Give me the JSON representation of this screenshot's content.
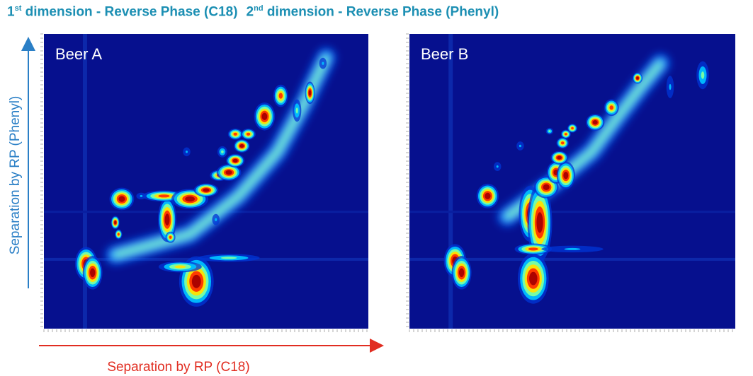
{
  "header": {
    "dim1_ordinal": "1",
    "dim1_suffix": "st",
    "dim1_text": "dimension - Reverse Phase (C18)",
    "dim2_ordinal": "2",
    "dim2_suffix": "nd",
    "dim2_text": "dimension - Reverse Phase (Phenyl)"
  },
  "axes": {
    "y_label": "Separation by RP (Phenyl)",
    "x_label": "Separation by RP (C18)",
    "y_arrow_color": "#2a7fc6",
    "x_arrow_color": "#e12d21"
  },
  "chart_data": [
    {
      "type": "heatmap",
      "title": "Beer A",
      "colormap": [
        "#00007a",
        "#0035d6",
        "#00bfff",
        "#7dffa0",
        "#ffe000",
        "#ff3000",
        "#a80000"
      ],
      "background": "#06108e",
      "x_range": [
        0,
        1
      ],
      "y_range": [
        0,
        1
      ],
      "diagonal_band": [
        [
          0.22,
          0.25
        ],
        [
          0.45,
          0.32
        ],
        [
          0.6,
          0.45
        ],
        [
          0.72,
          0.6
        ],
        [
          0.8,
          0.76
        ],
        [
          0.87,
          0.92
        ]
      ],
      "peaks": [
        {
          "x": 0.13,
          "y": 0.22,
          "sx": 0.018,
          "sy": 0.03,
          "v": 1.0
        },
        {
          "x": 0.15,
          "y": 0.19,
          "sx": 0.016,
          "sy": 0.03,
          "v": 1.0
        },
        {
          "x": 0.24,
          "y": 0.44,
          "sx": 0.02,
          "sy": 0.02,
          "v": 1.0
        },
        {
          "x": 0.22,
          "y": 0.36,
          "sx": 0.007,
          "sy": 0.012,
          "v": 0.95
        },
        {
          "x": 0.23,
          "y": 0.32,
          "sx": 0.006,
          "sy": 0.009,
          "v": 0.9
        },
        {
          "x": 0.38,
          "y": 0.37,
          "sx": 0.015,
          "sy": 0.04,
          "v": 1.0
        },
        {
          "x": 0.39,
          "y": 0.31,
          "sx": 0.008,
          "sy": 0.01,
          "v": 0.9
        },
        {
          "x": 0.37,
          "y": 0.45,
          "sx": 0.035,
          "sy": 0.01,
          "v": 0.85
        },
        {
          "x": 0.45,
          "y": 0.44,
          "sx": 0.03,
          "sy": 0.018,
          "v": 1.0
        },
        {
          "x": 0.5,
          "y": 0.47,
          "sx": 0.02,
          "sy": 0.012,
          "v": 0.95
        },
        {
          "x": 0.54,
          "y": 0.52,
          "sx": 0.015,
          "sy": 0.01,
          "v": 0.9
        },
        {
          "x": 0.57,
          "y": 0.53,
          "sx": 0.02,
          "sy": 0.015,
          "v": 1.0
        },
        {
          "x": 0.59,
          "y": 0.57,
          "sx": 0.015,
          "sy": 0.012,
          "v": 1.0
        },
        {
          "x": 0.61,
          "y": 0.62,
          "sx": 0.013,
          "sy": 0.012,
          "v": 0.95
        },
        {
          "x": 0.59,
          "y": 0.66,
          "sx": 0.012,
          "sy": 0.01,
          "v": 0.9
        },
        {
          "x": 0.63,
          "y": 0.66,
          "sx": 0.012,
          "sy": 0.01,
          "v": 0.9
        },
        {
          "x": 0.68,
          "y": 0.72,
          "sx": 0.017,
          "sy": 0.025,
          "v": 1.0
        },
        {
          "x": 0.73,
          "y": 0.79,
          "sx": 0.012,
          "sy": 0.02,
          "v": 0.85
        },
        {
          "x": 0.82,
          "y": 0.8,
          "sx": 0.008,
          "sy": 0.02,
          "v": 0.95
        },
        {
          "x": 0.78,
          "y": 0.74,
          "sx": 0.007,
          "sy": 0.02,
          "v": 0.45
        },
        {
          "x": 0.86,
          "y": 0.9,
          "sx": 0.006,
          "sy": 0.01,
          "v": 0.4
        },
        {
          "x": 0.47,
          "y": 0.16,
          "sx": 0.028,
          "sy": 0.045,
          "v": 1.0
        },
        {
          "x": 0.42,
          "y": 0.21,
          "sx": 0.035,
          "sy": 0.01,
          "v": 0.6
        },
        {
          "x": 0.57,
          "y": 0.24,
          "sx": 0.05,
          "sy": 0.007,
          "v": 0.5
        },
        {
          "x": 0.53,
          "y": 0.37,
          "sx": 0.006,
          "sy": 0.01,
          "v": 0.4
        },
        {
          "x": 0.55,
          "y": 0.6,
          "sx": 0.008,
          "sy": 0.01,
          "v": 0.5
        },
        {
          "x": 0.44,
          "y": 0.6,
          "sx": 0.006,
          "sy": 0.008,
          "v": 0.35
        },
        {
          "x": 0.3,
          "y": 0.45,
          "sx": 0.008,
          "sy": 0.006,
          "v": 0.35
        }
      ]
    },
    {
      "type": "heatmap",
      "title": "Beer B",
      "colormap": [
        "#00007a",
        "#0035d6",
        "#00bfff",
        "#7dffa0",
        "#ffe000",
        "#ff3000",
        "#a80000"
      ],
      "background": "#06108e",
      "x_range": [
        0,
        1
      ],
      "y_range": [
        0,
        1
      ],
      "diagonal_band": [
        [
          0.3,
          0.38
        ],
        [
          0.45,
          0.5
        ],
        [
          0.56,
          0.6
        ],
        [
          0.64,
          0.72
        ],
        [
          0.71,
          0.82
        ],
        [
          0.77,
          0.9
        ]
      ],
      "peaks": [
        {
          "x": 0.14,
          "y": 0.23,
          "sx": 0.018,
          "sy": 0.03,
          "v": 1.0
        },
        {
          "x": 0.16,
          "y": 0.19,
          "sx": 0.016,
          "sy": 0.03,
          "v": 1.0
        },
        {
          "x": 0.24,
          "y": 0.45,
          "sx": 0.018,
          "sy": 0.022,
          "v": 1.0
        },
        {
          "x": 0.37,
          "y": 0.39,
          "sx": 0.018,
          "sy": 0.05,
          "v": 1.0
        },
        {
          "x": 0.4,
          "y": 0.36,
          "sx": 0.02,
          "sy": 0.07,
          "v": 1.0
        },
        {
          "x": 0.42,
          "y": 0.48,
          "sx": 0.02,
          "sy": 0.02,
          "v": 1.0
        },
        {
          "x": 0.45,
          "y": 0.53,
          "sx": 0.015,
          "sy": 0.02,
          "v": 1.0
        },
        {
          "x": 0.48,
          "y": 0.52,
          "sx": 0.015,
          "sy": 0.025,
          "v": 1.0
        },
        {
          "x": 0.46,
          "y": 0.58,
          "sx": 0.014,
          "sy": 0.012,
          "v": 1.0
        },
        {
          "x": 0.47,
          "y": 0.63,
          "sx": 0.01,
          "sy": 0.01,
          "v": 0.9
        },
        {
          "x": 0.48,
          "y": 0.66,
          "sx": 0.008,
          "sy": 0.008,
          "v": 0.85
        },
        {
          "x": 0.5,
          "y": 0.68,
          "sx": 0.008,
          "sy": 0.008,
          "v": 0.85
        },
        {
          "x": 0.43,
          "y": 0.67,
          "sx": 0.006,
          "sy": 0.006,
          "v": 0.5
        },
        {
          "x": 0.57,
          "y": 0.7,
          "sx": 0.015,
          "sy": 0.015,
          "v": 1.0
        },
        {
          "x": 0.62,
          "y": 0.75,
          "sx": 0.012,
          "sy": 0.015,
          "v": 0.9
        },
        {
          "x": 0.7,
          "y": 0.85,
          "sx": 0.008,
          "sy": 0.01,
          "v": 0.95
        },
        {
          "x": 0.8,
          "y": 0.82,
          "sx": 0.006,
          "sy": 0.02,
          "v": 0.4
        },
        {
          "x": 0.9,
          "y": 0.86,
          "sx": 0.01,
          "sy": 0.025,
          "v": 0.45
        },
        {
          "x": 0.38,
          "y": 0.17,
          "sx": 0.025,
          "sy": 0.045,
          "v": 1.0
        },
        {
          "x": 0.38,
          "y": 0.27,
          "sx": 0.03,
          "sy": 0.01,
          "v": 0.9
        },
        {
          "x": 0.5,
          "y": 0.27,
          "sx": 0.05,
          "sy": 0.006,
          "v": 0.4
        },
        {
          "x": 0.34,
          "y": 0.62,
          "sx": 0.006,
          "sy": 0.008,
          "v": 0.35
        },
        {
          "x": 0.27,
          "y": 0.55,
          "sx": 0.006,
          "sy": 0.008,
          "v": 0.3
        }
      ]
    }
  ]
}
